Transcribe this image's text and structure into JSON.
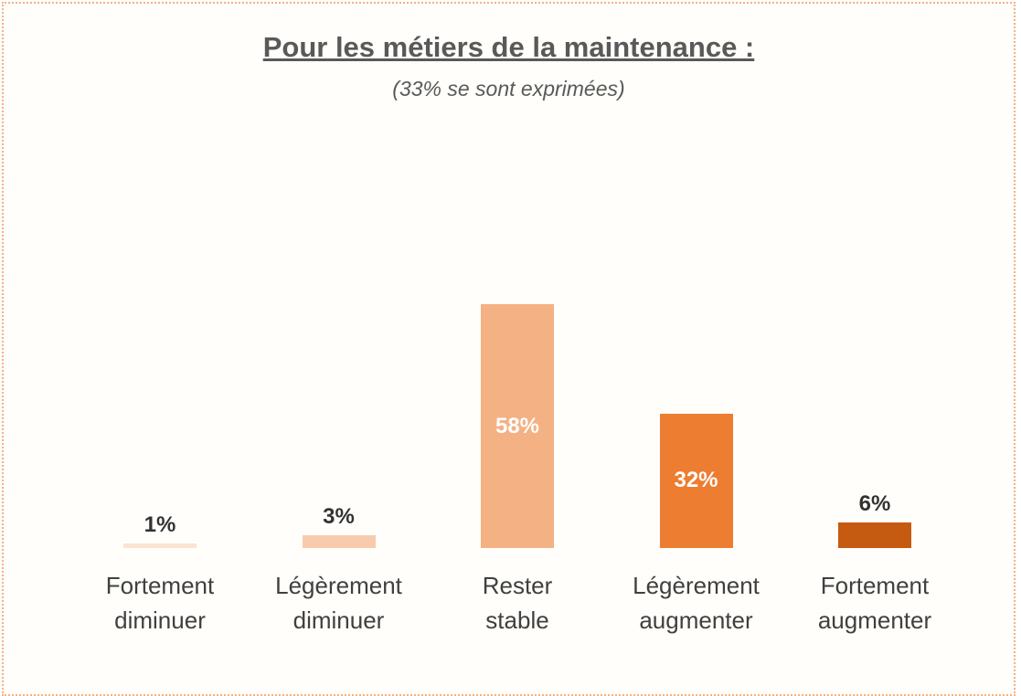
{
  "chart_data": {
    "type": "bar",
    "title": "Pour les métiers de la maintenance :",
    "subtitle": "(33% se sont exprimées)",
    "categories": [
      "Fortement diminuer",
      "Légèrement diminuer",
      "Rester stable",
      "Légèrement augmenter",
      "Fortement augmenter"
    ],
    "values": [
      1,
      3,
      58,
      32,
      6
    ],
    "value_labels": [
      "1%",
      "3%",
      "58%",
      "32%",
      "6%"
    ],
    "colors": [
      "#fbe3d3",
      "#f8cbad",
      "#f4b183",
      "#ed7d31",
      "#c55a11"
    ]
  }
}
